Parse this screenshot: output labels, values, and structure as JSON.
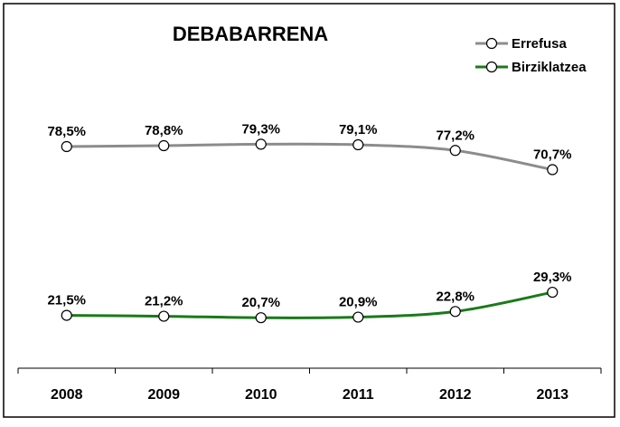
{
  "chart_data": {
    "type": "line",
    "title": "DEBABARRENA",
    "categories": [
      "2008",
      "2009",
      "2010",
      "2011",
      "2012",
      "2013"
    ],
    "series": [
      {
        "name": "Errefusa",
        "color": "#8c8c8c",
        "values": [
          78.5,
          78.8,
          79.3,
          79.1,
          77.2,
          70.7
        ],
        "labels": [
          "78,5%",
          "78,8%",
          "79,3%",
          "79,1%",
          "77,2%",
          "70,7%"
        ]
      },
      {
        "name": "Birziklatzea",
        "color": "#1a7a1a",
        "values": [
          21.5,
          21.2,
          20.7,
          20.9,
          22.8,
          29.3
        ],
        "labels": [
          "21,5%",
          "21,2%",
          "20,7%",
          "20,9%",
          "22,8%",
          "29,3%"
        ]
      }
    ],
    "ylim": [
      0,
      100
    ],
    "grid": false,
    "legend": "top-right",
    "xlabel": "",
    "ylabel": ""
  }
}
